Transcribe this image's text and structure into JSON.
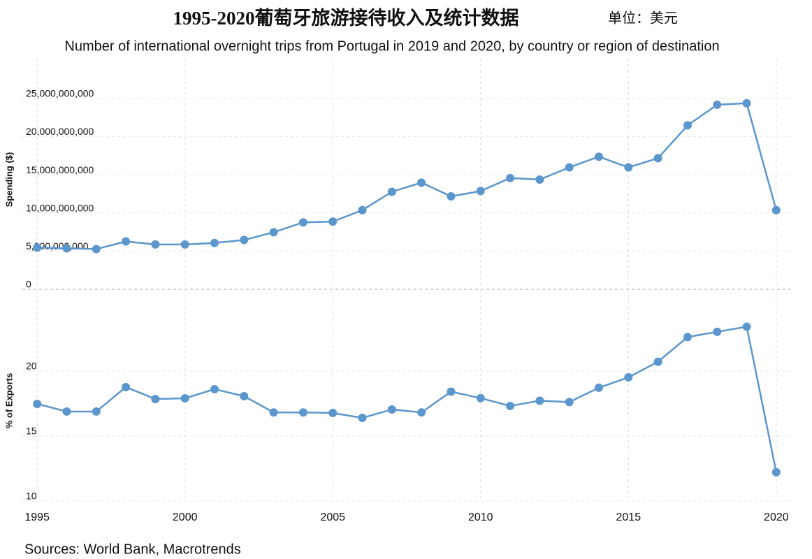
{
  "title": "1995-2020葡萄牙旅游接待收入及统计数据",
  "unit": "单位：美元",
  "subtitle": "Number of international overnight trips from Portugal in 2019 and 2020, by country or region of destination",
  "source": "Sources: World Bank, Macrotrends",
  "chart_data": [
    {
      "type": "line",
      "ylabel": "Spending ($)",
      "x": [
        1995,
        1996,
        1997,
        1998,
        1999,
        2000,
        2001,
        2002,
        2003,
        2004,
        2005,
        2006,
        2007,
        2008,
        2009,
        2010,
        2011,
        2012,
        2013,
        2014,
        2015,
        2016,
        2017,
        2018,
        2019,
        2020
      ],
      "series": [
        {
          "name": "Spending",
          "color": "#5b96cc",
          "values": [
            5100000000,
            5000000000,
            4900000000,
            5900000000,
            5500000000,
            5500000000,
            5700000000,
            6100000000,
            7100000000,
            8400000000,
            8500000000,
            10000000000,
            12400000000,
            13600000000,
            11800000000,
            12500000000,
            14200000000,
            14000000000,
            15600000000,
            17000000000,
            15600000000,
            16800000000,
            21100000000,
            23800000000,
            24000000000,
            10000000000
          ]
        }
      ],
      "xlim": [
        1994.5,
        2020.5
      ],
      "ylim": [
        0,
        28000000000
      ],
      "yticks": [
        0,
        {
          "value": 5000000000,
          "label": "5,000,000,000"
        },
        {
          "value": 10000000000,
          "label": "10,000,000,000"
        },
        {
          "value": 15000000000,
          "label": "15,000,000,000"
        },
        {
          "value": 20000000000,
          "label": "20,000,000,000"
        },
        {
          "value": 25000000000,
          "label": "25,000,000,000"
        }
      ],
      "grid": true
    },
    {
      "type": "line",
      "ylabel": "% of Exports",
      "x": [
        1995,
        1996,
        1997,
        1998,
        1999,
        2000,
        2001,
        2002,
        2003,
        2004,
        2005,
        2006,
        2007,
        2008,
        2009,
        2010,
        2011,
        2012,
        2013,
        2014,
        2015,
        2016,
        2017,
        2018,
        2019,
        2020
      ],
      "series": [
        {
          "name": "% of Exports",
          "color": "#5b96cc",
          "values": [
            17.26,
            16.67,
            16.67,
            18.55,
            17.63,
            17.69,
            18.39,
            17.85,
            16.6,
            16.6,
            16.56,
            16.18,
            16.83,
            16.6,
            18.2,
            17.7,
            17.1,
            17.5,
            17.4,
            18.5,
            19.3,
            20.5,
            22.4,
            22.8,
            23.2,
            12.0
          ]
        }
      ],
      "xlim": [
        1994.5,
        2020.5
      ],
      "ylim": [
        10,
        25
      ],
      "xticks": [
        1995,
        2000,
        2005,
        2010,
        2015,
        2020
      ],
      "yticks": [
        10,
        15,
        20
      ],
      "grid": true
    }
  ]
}
